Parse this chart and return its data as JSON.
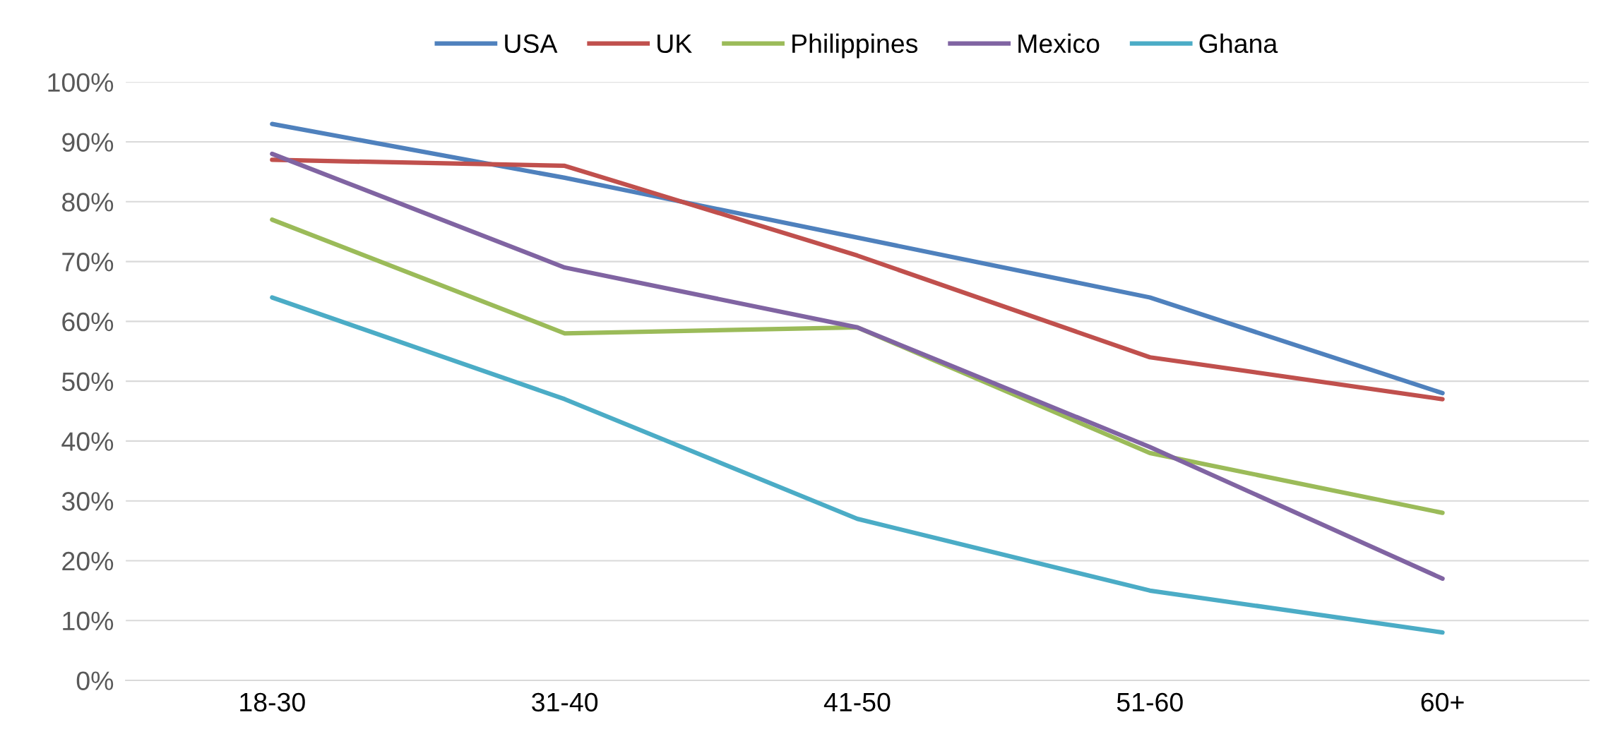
{
  "chart_data": {
    "type": "line",
    "categories": [
      "18-30",
      "31-40",
      "41-50",
      "51-60",
      "60+"
    ],
    "series": [
      {
        "name": "USA",
        "color": "#4f81bd",
        "values": [
          93,
          84,
          74,
          64,
          48
        ]
      },
      {
        "name": "UK",
        "color": "#c0504d",
        "values": [
          87,
          86,
          71,
          54,
          47
        ]
      },
      {
        "name": "Philippines",
        "color": "#9bbb59",
        "values": [
          77,
          58,
          59,
          38,
          28
        ]
      },
      {
        "name": "Mexico",
        "color": "#8064a2",
        "values": [
          88,
          69,
          59,
          39,
          17
        ]
      },
      {
        "name": "Ghana",
        "color": "#4bacc6",
        "values": [
          64,
          47,
          27,
          15,
          8
        ]
      }
    ],
    "ylim": [
      0,
      100
    ],
    "yticks": [
      {
        "value": 0,
        "label": "0%"
      },
      {
        "value": 10,
        "label": "10%"
      },
      {
        "value": 20,
        "label": "20%"
      },
      {
        "value": 30,
        "label": "30%"
      },
      {
        "value": 40,
        "label": "40%"
      },
      {
        "value": 50,
        "label": "50%"
      },
      {
        "value": 60,
        "label": "60%"
      },
      {
        "value": 70,
        "label": "70%"
      },
      {
        "value": 80,
        "label": "80%"
      },
      {
        "value": 90,
        "label": "90%"
      },
      {
        "value": 100,
        "label": "100%"
      }
    ],
    "grid": "y",
    "legend": "top",
    "marker": "none",
    "line_style": "solid"
  }
}
